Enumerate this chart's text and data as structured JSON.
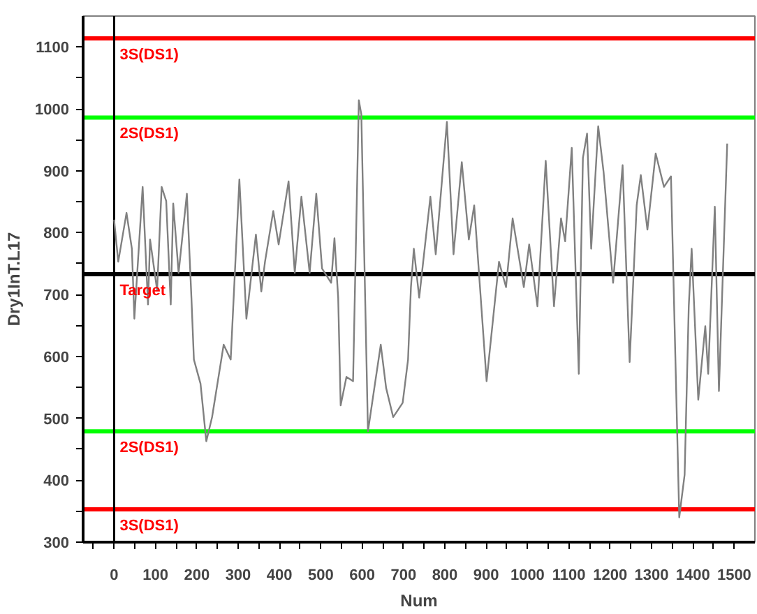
{
  "chart_data": {
    "type": "line",
    "xlabel": "Num",
    "ylabel": "Dry1InT.L17",
    "xlim": [
      -75,
      1550
    ],
    "ylim": [
      300,
      1150
    ],
    "xticks": [
      {
        "value": -50,
        "label": null
      },
      0,
      {
        "value": 50,
        "label": null
      },
      100,
      {
        "value": 150,
        "label": null
      },
      200,
      {
        "value": 250,
        "label": null
      },
      300,
      {
        "value": 350,
        "label": null
      },
      400,
      {
        "value": 450,
        "label": null
      },
      500,
      {
        "value": 550,
        "label": null
      },
      600,
      {
        "value": 650,
        "label": null
      },
      700,
      {
        "value": 750,
        "label": null
      },
      800,
      {
        "value": 850,
        "label": null
      },
      900,
      {
        "value": 950,
        "label": null
      },
      1000,
      {
        "value": 1050,
        "label": null
      },
      1100,
      {
        "value": 1150,
        "label": null
      },
      1200,
      {
        "value": 1250,
        "label": null
      },
      1300,
      {
        "value": 1350,
        "label": null
      },
      1400,
      {
        "value": 1450,
        "label": null
      },
      1500
    ],
    "yticks": [
      300,
      {
        "value": 350,
        "label": null
      },
      400,
      {
        "value": 450,
        "label": null
      },
      500,
      {
        "value": 550,
        "label": null
      },
      600,
      {
        "value": 650,
        "label": null
      },
      700,
      {
        "value": 750,
        "label": null
      },
      800,
      {
        "value": 850,
        "label": null
      },
      900,
      {
        "value": 950,
        "label": null
      },
      1000,
      {
        "value": 1050,
        "label": null
      },
      1100
    ],
    "grid": false,
    "marker": "none",
    "line_style": "solid",
    "series": [
      {
        "color": "#808080",
        "x": [
          0,
          10,
          30,
          43,
          49,
          69,
          82,
          87,
          104,
          115,
          126,
          137,
          143,
          156,
          176,
          187,
          193,
          209,
          223,
          237,
          265,
          282,
          303,
          320,
          343,
          356,
          365,
          385,
          398,
          422,
          437,
          453,
          473,
          489,
          503,
          525,
          533,
          542,
          548,
          562,
          578,
          592,
          598,
          614,
          631,
          645,
          658,
          675,
          698,
          711,
          718,
          725,
          738,
          765,
          778,
          805,
          821,
          841,
          858,
          871,
          885,
          901,
          931,
          948,
          964,
          991,
          1004,
          1024,
          1044,
          1064,
          1081,
          1091,
          1107,
          1124,
          1134,
          1144,
          1154,
          1171,
          1184,
          1207,
          1230,
          1247,
          1264,
          1274,
          1290,
          1310,
          1330,
          1347,
          1367,
          1380,
          1390,
          1397,
          1413,
          1430,
          1437,
          1453,
          1463,
          1483
        ],
        "values": [
          821,
          753,
          832,
          774,
          661,
          874,
          684,
          789,
          707,
          874,
          851,
          684,
          847,
          735,
          863,
          695,
          595,
          556,
          463,
          502,
          619,
          595,
          886,
          661,
          797,
          705,
          753,
          835,
          781,
          883,
          735,
          858,
          735,
          863,
          742,
          719,
          791,
          695,
          521,
          567,
          560,
          1014,
          991,
          479,
          556,
          619,
          549,
          502,
          525,
          595,
          712,
          774,
          695,
          858,
          765,
          979,
          765,
          914,
          789,
          844,
          712,
          560,
          753,
          712,
          823,
          712,
          781,
          681,
          916,
          681,
          823,
          786,
          937,
          572,
          921,
          960,
          774,
          972,
          898,
          719,
          909,
          591,
          844,
          893,
          805,
          928,
          874,
          891,
          340,
          409,
          681,
          774,
          530,
          649,
          572,
          842,
          544,
          944
        ]
      }
    ],
    "ref_lines": [
      {
        "axis": "y",
        "value": 1114,
        "label": "3S(DS1)",
        "color": "#ff0000"
      },
      {
        "axis": "y",
        "value": 986,
        "label": "2S(DS1)",
        "color": "#00ff00"
      },
      {
        "axis": "y",
        "value": 733,
        "label": "Target",
        "color": "#000000"
      },
      {
        "axis": "y",
        "value": 479,
        "label": "2S(DS1)",
        "color": "#00ff00"
      },
      {
        "axis": "y",
        "value": 353,
        "label": "3S(DS1)",
        "color": "#ff0000"
      },
      {
        "axis": "x",
        "value": 0,
        "color": "#000000"
      }
    ]
  }
}
